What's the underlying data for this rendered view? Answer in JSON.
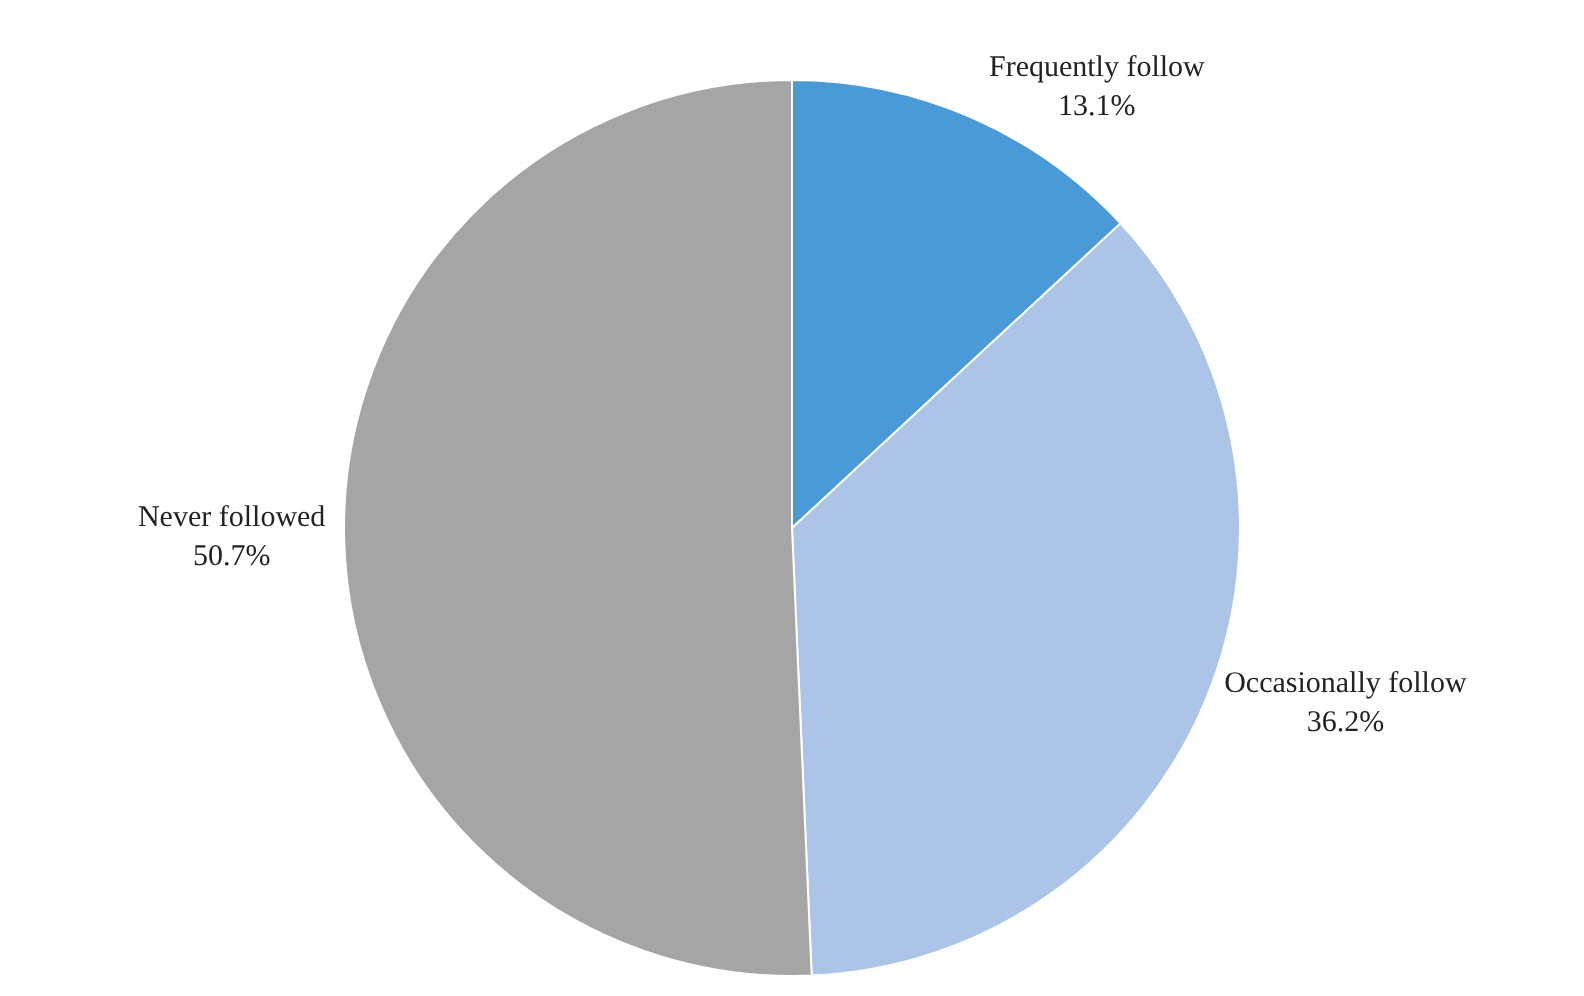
{
  "chart_data": {
    "type": "pie",
    "categories": [
      "Frequently follow",
      "Occasionally follow",
      "Never followed"
    ],
    "values": [
      13.1,
      36.2,
      50.7
    ],
    "value_labels": [
      "13.1%",
      "36.2%",
      "50.7%"
    ],
    "colors": [
      "#4a9ad8",
      "#abc4e8",
      "#a5a5a5"
    ]
  }
}
